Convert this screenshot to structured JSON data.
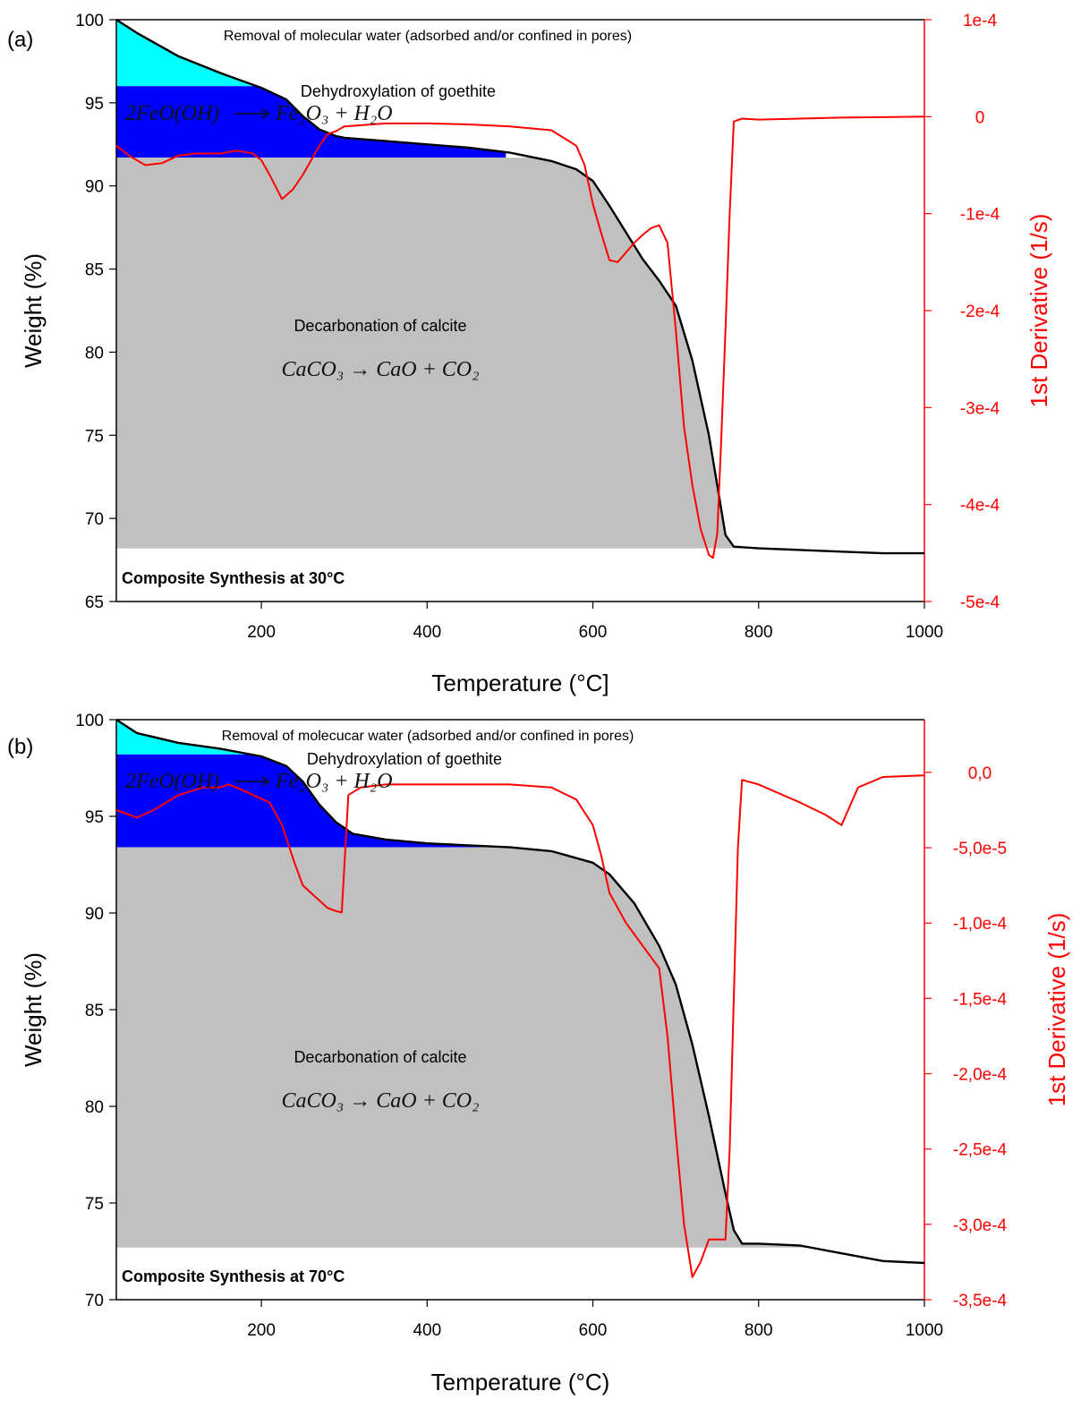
{
  "chart_data": [
    {
      "type": "line",
      "panel_label": "(a)",
      "xlabel": "Temperature (°C]",
      "ylabel": "Weight (%)",
      "y2label": "1st Derivative (1/s)",
      "xlim": [
        25,
        1000
      ],
      "ylim": [
        65,
        100
      ],
      "y2lim": [
        -0.0005,
        0.0001
      ],
      "x_ticks": [
        "200",
        "400",
        "600",
        "800",
        "1000"
      ],
      "y_ticks": [
        "65",
        "70",
        "75",
        "80",
        "85",
        "90",
        "95",
        "100"
      ],
      "y2_ticks": [
        "-5e-4",
        "-4e-4",
        "-3e-4",
        "-2e-4",
        "-1e-4",
        "0",
        "1e-4"
      ],
      "y2_tick_values": [
        -0.0005,
        -0.0004,
        -0.0003,
        -0.0002,
        -0.0001,
        0,
        0.0001
      ],
      "regions": {
        "water_top": 100,
        "water_bottom": 96.0,
        "water_color": "#00ffff",
        "goethite_bottom": 91.7,
        "goethite_x_end": 495,
        "goethite_color": "#0000ff",
        "calcite_bottom": 68.2,
        "calcite_color": "#c0c0c0"
      },
      "annotations": {
        "water": "Removal of molecular water (adsorbed and/or confined in pores)",
        "goethite": "Dehydroxylation of goethite",
        "goethite_eq_left": "2FeO(OH)",
        "goethite_eq_right": "Fe₂O₃ + H₂O",
        "calcite": "Decarbonation of calcite",
        "calcite_eq": "CaCO₃ → CaO + CO₂",
        "synthesis": "Composite Synthesis at 30°C"
      },
      "series": [
        {
          "role": "weight",
          "color": "#000000",
          "x": [
            25,
            50,
            100,
            150,
            200,
            230,
            250,
            270,
            290,
            300,
            350,
            400,
            450,
            500,
            550,
            580,
            600,
            620,
            640,
            660,
            680,
            700,
            720,
            740,
            750,
            760,
            770,
            800,
            850,
            900,
            950,
            1000
          ],
          "y": [
            100,
            99.2,
            97.8,
            96.8,
            95.9,
            95.2,
            94.2,
            93.4,
            93.0,
            92.9,
            92.7,
            92.5,
            92.3,
            92.0,
            91.5,
            91.0,
            90.3,
            88.8,
            87.2,
            85.6,
            84.3,
            82.8,
            79.5,
            75.0,
            72.0,
            69.0,
            68.3,
            68.2,
            68.1,
            68.0,
            67.9,
            67.9
          ]
        },
        {
          "role": "derivative",
          "color": "#ff0000",
          "x": [
            25,
            40,
            50,
            60,
            80,
            100,
            120,
            150,
            170,
            190,
            200,
            210,
            225,
            238,
            250,
            260,
            270,
            280,
            290,
            300,
            350,
            400,
            450,
            500,
            550,
            580,
            590,
            600,
            610,
            620,
            630,
            640,
            650,
            660,
            670,
            680,
            690,
            700,
            710,
            720,
            730,
            740,
            745,
            750,
            755,
            760,
            765,
            770,
            780,
            800,
            900,
            1000
          ],
          "y": [
            -3e-05,
            -4e-05,
            -4.5e-05,
            -5e-05,
            -4.8e-05,
            -4e-05,
            -3.8e-05,
            -3.8e-05,
            -3.5e-05,
            -3.8e-05,
            -4.5e-05,
            -6e-05,
            -8.5e-05,
            -7.5e-05,
            -6e-05,
            -4.5e-05,
            -3e-05,
            -1.8e-05,
            -1.5e-05,
            -1e-05,
            -7e-06,
            -7e-06,
            -8e-06,
            -1e-05,
            -1.4e-05,
            -3e-05,
            -5e-05,
            -9e-05,
            -0.00012,
            -0.000148,
            -0.00015,
            -0.00014,
            -0.00013,
            -0.000122,
            -0.000115,
            -0.000112,
            -0.00013,
            -0.00022,
            -0.00032,
            -0.00038,
            -0.000425,
            -0.000452,
            -0.000455,
            -0.00043,
            -0.00033,
            -0.00022,
            -0.0001,
            -5e-06,
            -2e-06,
            -3e-06,
            -1e-06,
            0.0
          ]
        }
      ]
    },
    {
      "type": "line",
      "panel_label": "(b)",
      "xlabel": "Temperature (°C)",
      "ylabel": "Weight (%)",
      "y2label": "1st Derivative (1/s)",
      "xlim": [
        25,
        1000
      ],
      "ylim": [
        70,
        100
      ],
      "y2lim": [
        -0.00035,
        3.5e-05
      ],
      "x_ticks": [
        "200",
        "400",
        "600",
        "800",
        "1000"
      ],
      "y_ticks": [
        "70",
        "75",
        "80",
        "85",
        "90",
        "95",
        "100"
      ],
      "y2_ticks": [
        "-3,5e-4",
        "-3,0e-4",
        "-2,5e-4",
        "-2,0e-4",
        "-1,5e-4",
        "-1,0e-4",
        "-5,0e-5",
        "0,0"
      ],
      "y2_tick_values": [
        -0.00035,
        -0.0003,
        -0.00025,
        -0.0002,
        -0.00015,
        -0.0001,
        -5e-05,
        0
      ],
      "regions": {
        "water_top": 100,
        "water_bottom": 98.2,
        "water_color": "#00ffff",
        "goethite_bottom": 93.4,
        "goethite_x_end": 500,
        "goethite_color": "#0000ff",
        "calcite_bottom": 72.7,
        "calcite_color": "#c0c0c0"
      },
      "annotations": {
        "water": "Removal of molecucar water (adsorbed and/or confined in pores)",
        "goethite": "Dehydroxylation of goethite",
        "goethite_eq_left": "2FeO(OH)",
        "goethite_eq_right": "Fe₂O₃ + H₂O",
        "calcite": "Decarbonation of calcite",
        "calcite_eq": "CaCO₃ → CaO + CO₂",
        "synthesis": "Composite Synthesis at 70°C"
      },
      "series": [
        {
          "role": "weight",
          "color": "#000000",
          "x": [
            25,
            50,
            100,
            150,
            200,
            230,
            250,
            270,
            290,
            310,
            350,
            400,
            450,
            500,
            550,
            600,
            620,
            650,
            680,
            700,
            720,
            740,
            760,
            770,
            780,
            800,
            850,
            900,
            950,
            1000
          ],
          "y": [
            100,
            99.3,
            98.8,
            98.5,
            98.1,
            97.6,
            96.8,
            95.6,
            94.7,
            94.1,
            93.8,
            93.6,
            93.5,
            93.4,
            93.2,
            92.6,
            92.0,
            90.5,
            88.3,
            86.3,
            83.2,
            79.5,
            75.5,
            73.6,
            72.9,
            72.9,
            72.8,
            72.4,
            72.0,
            71.9
          ]
        },
        {
          "role": "derivative",
          "color": "#ff0000",
          "x": [
            25,
            40,
            50,
            70,
            100,
            130,
            150,
            160,
            170,
            190,
            210,
            225,
            240,
            250,
            260,
            270,
            280,
            290,
            297,
            305,
            320,
            350,
            400,
            450,
            500,
            550,
            580,
            600,
            610,
            620,
            640,
            660,
            680,
            690,
            700,
            710,
            720,
            730,
            740,
            750,
            760,
            765,
            770,
            775,
            780,
            800,
            850,
            880,
            900,
            920,
            950,
            1000
          ],
          "y": [
            -2.5e-05,
            -2.8e-05,
            -3e-05,
            -2.5e-05,
            -1.5e-05,
            -1e-05,
            -1e-05,
            -8e-06,
            -1e-05,
            -1.5e-05,
            -2e-05,
            -3.5e-05,
            -6e-05,
            -7.5e-05,
            -8e-05,
            -8.5e-05,
            -9e-05,
            -9.2e-05,
            -9.3e-05,
            -1.5e-05,
            -1e-05,
            -8e-06,
            -8e-06,
            -8e-06,
            -8e-06,
            -1e-05,
            -1.8e-05,
            -3.5e-05,
            -5.5e-05,
            -8e-05,
            -0.0001,
            -0.000115,
            -0.00013,
            -0.000175,
            -0.00024,
            -0.0003,
            -0.000335,
            -0.000325,
            -0.00031,
            -0.00031,
            -0.00031,
            -0.00025,
            -0.00015,
            -5e-05,
            -5e-06,
            -8e-06,
            -2e-05,
            -2.8e-05,
            -3.5e-05,
            -1e-05,
            -3e-06,
            -2e-06
          ]
        }
      ]
    }
  ]
}
